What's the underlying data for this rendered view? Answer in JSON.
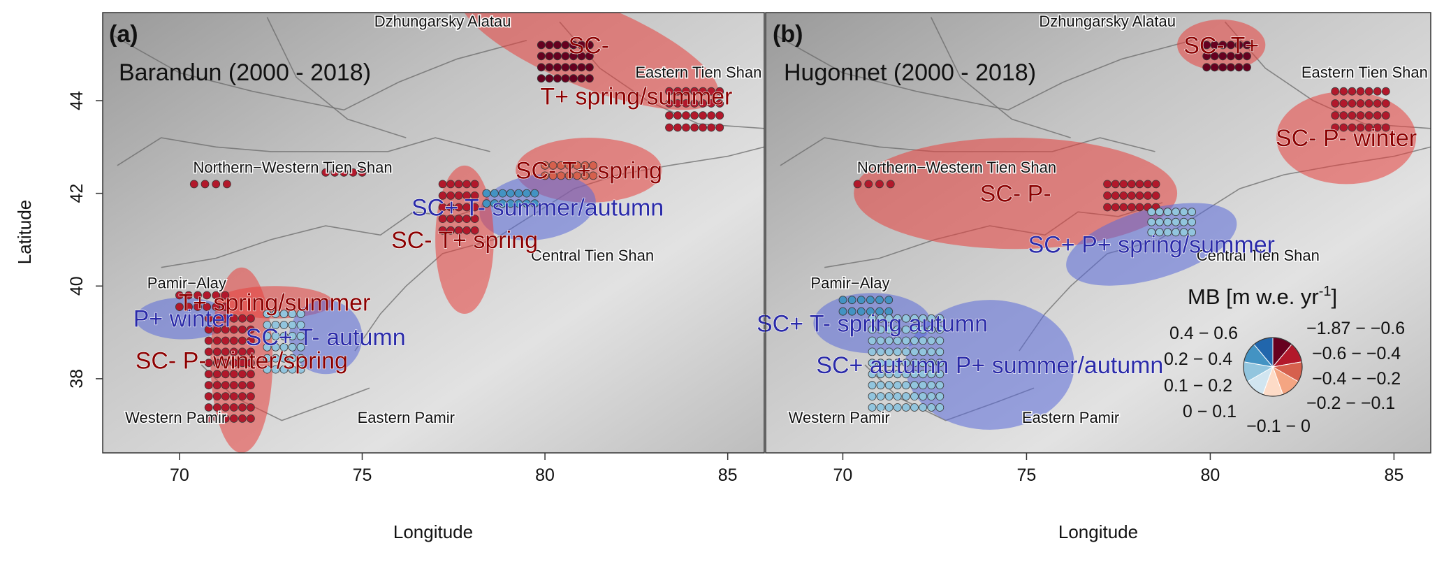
{
  "axes": {
    "ylabel": "Latitude",
    "xlabel": "Longitude",
    "xticks": [
      70,
      75,
      80,
      85
    ],
    "yticks": [
      38,
      40,
      42,
      44
    ],
    "xlim": [
      67.9,
      86.0
    ],
    "ylim": [
      36.4,
      45.9
    ]
  },
  "panels": [
    {
      "id": "a",
      "letter": "(a)",
      "subtitle": "Barandun (2000 - 2018)",
      "regions": [
        {
          "label": "Dzhungarsky Alatau",
          "lon": 77.2,
          "lat": 45.6
        },
        {
          "label": "Eastern Tien Shan",
          "lon": 84.2,
          "lat": 44.5
        },
        {
          "label": "Northern−Western Tien Shan",
          "lon": 73.1,
          "lat": 42.45
        },
        {
          "label": "Central Tien Shan",
          "lon": 81.3,
          "lat": 40.55
        },
        {
          "label": "Pamir−Alay",
          "lon": 70.2,
          "lat": 39.95
        },
        {
          "label": "Western Pamir",
          "lon": 69.9,
          "lat": 37.05
        },
        {
          "label": "Eastern Pamir",
          "lon": 76.2,
          "lat": 37.05
        }
      ]
    },
    {
      "id": "b",
      "letter": "(b)",
      "subtitle": "Hugonnet (2000 - 2018)",
      "regions": [
        {
          "label": "Dzhungarsky Alatau",
          "lon": 77.2,
          "lat": 45.6
        },
        {
          "label": "Eastern Tien Shan",
          "lon": 84.2,
          "lat": 44.5
        },
        {
          "label": "Northern−Western Tien Shan",
          "lon": 73.1,
          "lat": 42.45
        },
        {
          "label": "Central Tien Shan",
          "lon": 81.3,
          "lat": 40.55
        },
        {
          "label": "Pamir−Alay",
          "lon": 70.2,
          "lat": 39.95
        },
        {
          "label": "Western Pamir",
          "lon": 69.9,
          "lat": 37.05
        },
        {
          "label": "Eastern Pamir",
          "lon": 76.2,
          "lat": 37.05
        }
      ]
    }
  ],
  "legend": {
    "title": "MB [m w.e. yr",
    "title_sup": "-1",
    "title_end": "]",
    "classes_negative": [
      {
        "label": "−1.87 − −0.6",
        "color": "#67001f"
      },
      {
        "label": "−0.6 − −0.4",
        "color": "#b2182b"
      },
      {
        "label": "−0.4 − −0.2",
        "color": "#d6604d"
      },
      {
        "label": "−0.2 − −0.1",
        "color": "#f4a582"
      },
      {
        "label": "−0.1 − 0",
        "color": "#fddbc7"
      }
    ],
    "classes_positive": [
      {
        "label": "0.4 − 0.6",
        "color": "#2166ac"
      },
      {
        "label": "0.2 − 0.4",
        "color": "#4393c3"
      },
      {
        "label": "0.1 − 0.2",
        "color": "#92c5de"
      },
      {
        "label": "0 − 0.1",
        "color": "#d1e5f0"
      }
    ]
  },
  "chart_data": [
    {
      "type": "scatter",
      "title": "Barandun (2000 - 2018)",
      "xlabel": "Longitude",
      "ylabel": "Latitude",
      "xlim": [
        67.9,
        86.0
      ],
      "ylim": [
        36.4,
        45.9
      ],
      "point_groups": [
        {
          "lon0": 79.9,
          "lat0": 45.2,
          "cols": 7,
          "rows": 4,
          "dlon": 0.22,
          "dlat": 0.24,
          "mb_class": "-1.87 - -0.6"
        },
        {
          "lon0": 83.4,
          "lat0": 44.2,
          "cols": 7,
          "rows": 4,
          "dlon": 0.23,
          "dlat": 0.26,
          "mb_class": "-0.6 - -0.4"
        },
        {
          "lon0": 70.4,
          "lat0": 42.2,
          "cols": 4,
          "rows": 1,
          "dlon": 0.3,
          "dlat": 0.25,
          "mb_class": "-0.6 - -0.4"
        },
        {
          "lon0": 74.0,
          "lat0": 42.45,
          "cols": 5,
          "rows": 1,
          "dlon": 0.25,
          "dlat": 0.25,
          "mb_class": "-0.6 - -0.4"
        },
        {
          "lon0": 77.2,
          "lat0": 42.2,
          "cols": 5,
          "rows": 5,
          "dlon": 0.22,
          "dlat": 0.25,
          "mb_class": "-0.6 - -0.4"
        },
        {
          "lon0": 78.4,
          "lat0": 42.0,
          "cols": 7,
          "rows": 2,
          "dlon": 0.22,
          "dlat": 0.22,
          "mb_class": "0.2 - 0.4"
        },
        {
          "lon0": 80.0,
          "lat0": 42.6,
          "cols": 7,
          "rows": 2,
          "dlon": 0.22,
          "dlat": 0.22,
          "mb_class": "-0.4 - -0.2"
        },
        {
          "lon0": 70.0,
          "lat0": 39.8,
          "cols": 6,
          "rows": 2,
          "dlon": 0.25,
          "dlat": 0.25,
          "mb_class": "-0.6 - -0.4"
        },
        {
          "lon0": 70.8,
          "lat0": 39.3,
          "cols": 6,
          "rows": 10,
          "dlon": 0.23,
          "dlat": 0.24,
          "mb_class": "-0.6 - -0.4"
        },
        {
          "lon0": 72.4,
          "lat0": 39.4,
          "cols": 5,
          "rows": 6,
          "dlon": 0.23,
          "dlat": 0.24,
          "mb_class": "0.1 - 0.2"
        }
      ],
      "annotations": [
        {
          "text": "SC-",
          "color": "#8b0000",
          "lon": 81.2,
          "lat": 45.2,
          "ellipse": {
            "rx": 3.8,
            "ry": 0.9,
            "rot": 22,
            "fill": "#e8403c"
          }
        },
        {
          "text": "T+ spring/summer",
          "color": "#8b0000",
          "lon": 82.5,
          "lat": 44.1
        },
        {
          "text": "SC- T+ spring",
          "color": "#8b0000",
          "lon": 81.2,
          "lat": 42.5,
          "ellipse": {
            "rx": 2.0,
            "ry": 0.7,
            "rot": 0,
            "fill": "#e8403c"
          }
        },
        {
          "text": "SC+ T- summer/autumn",
          "color": "#2a2aa8",
          "lon": 79.8,
          "lat": 41.7,
          "ellipse": {
            "rx": 1.6,
            "ry": 0.7,
            "rot": -8,
            "fill": "#5a6ad8"
          }
        },
        {
          "text": "SC- T+ spring",
          "color": "#8b0000",
          "lon": 77.8,
          "lat": 41.0,
          "ellipse": {
            "rx": 0.8,
            "ry": 1.6,
            "rot": 0,
            "fill": "#e8403c"
          }
        },
        {
          "text": "T+ spring/summer",
          "color": "#8b0000",
          "lon": 72.6,
          "lat": 39.65,
          "ellipse": {
            "rx": 1.6,
            "ry": 0.35,
            "rot": 0,
            "fill": "#e8403c"
          }
        },
        {
          "text": "P+ winter",
          "color": "#2a2aa8",
          "lon": 70.1,
          "lat": 39.3,
          "ellipse": {
            "rx": 1.3,
            "ry": 0.45,
            "rot": 0,
            "fill": "#5a6ad8"
          }
        },
        {
          "text": "SC- P- winter/spring",
          "color": "#8b0000",
          "lon": 71.7,
          "lat": 38.4,
          "ellipse": {
            "rx": 0.85,
            "ry": 2.0,
            "rot": 0,
            "fill": "#e8403c"
          }
        },
        {
          "text": "SC+ T- autumn",
          "color": "#2a2aa8",
          "lon": 74.0,
          "lat": 38.9,
          "ellipse": {
            "rx": 1.0,
            "ry": 0.8,
            "rot": 0,
            "fill": "#5a6ad8"
          }
        }
      ]
    },
    {
      "type": "scatter",
      "title": "Hugonnet (2000 - 2018)",
      "xlabel": "Longitude",
      "ylabel": "Latitude",
      "xlim": [
        67.9,
        86.0
      ],
      "ylim": [
        36.4,
        45.9
      ],
      "point_groups": [
        {
          "lon0": 79.9,
          "lat0": 45.2,
          "cols": 6,
          "rows": 3,
          "dlon": 0.22,
          "dlat": 0.24,
          "mb_class": "-1.87 - -0.6"
        },
        {
          "lon0": 83.4,
          "lat0": 44.2,
          "cols": 7,
          "rows": 4,
          "dlon": 0.23,
          "dlat": 0.26,
          "mb_class": "-0.6 - -0.4"
        },
        {
          "lon0": 70.4,
          "lat0": 42.2,
          "cols": 4,
          "rows": 1,
          "dlon": 0.3,
          "dlat": 0.25,
          "mb_class": "-0.6 - -0.4"
        },
        {
          "lon0": 77.2,
          "lat0": 42.2,
          "cols": 7,
          "rows": 3,
          "dlon": 0.22,
          "dlat": 0.25,
          "mb_class": "-0.6 - -0.4"
        },
        {
          "lon0": 78.4,
          "lat0": 41.6,
          "cols": 6,
          "rows": 3,
          "dlon": 0.22,
          "dlat": 0.22,
          "mb_class": "0.1 - 0.2"
        },
        {
          "lon0": 70.0,
          "lat0": 39.7,
          "cols": 6,
          "rows": 2,
          "dlon": 0.25,
          "dlat": 0.25,
          "mb_class": "0.2 - 0.4"
        },
        {
          "lon0": 70.8,
          "lat0": 39.3,
          "cols": 9,
          "rows": 9,
          "dlon": 0.23,
          "dlat": 0.24,
          "mb_class": "0.1 - 0.2"
        }
      ],
      "annotations": [
        {
          "text": "SC- T+",
          "color": "#8b0000",
          "lon": 80.3,
          "lat": 45.2,
          "ellipse": {
            "rx": 1.2,
            "ry": 0.55,
            "rot": 0,
            "fill": "#e8403c"
          }
        },
        {
          "text": "SC- P- winter",
          "color": "#8b0000",
          "lon": 83.7,
          "lat": 43.2,
          "ellipse": {
            "rx": 1.9,
            "ry": 1.0,
            "rot": 0,
            "fill": "#e8403c"
          }
        },
        {
          "text": "SC- P-",
          "color": "#8b0000",
          "lon": 74.7,
          "lat": 42.0,
          "ellipse": {
            "rx": 4.4,
            "ry": 1.2,
            "rot": 0,
            "fill": "#e8403c"
          }
        },
        {
          "text": "SC+ P+ spring/summer",
          "color": "#2a2aa8",
          "lon": 78.4,
          "lat": 40.9,
          "ellipse": {
            "rx": 2.4,
            "ry": 0.75,
            "rot": -16,
            "fill": "#5a6ad8"
          }
        },
        {
          "text": "SC+ T- spring autumn",
          "color": "#2a2aa8",
          "lon": 70.8,
          "lat": 39.2,
          "ellipse": {
            "rx": 1.6,
            "ry": 0.65,
            "rot": 0,
            "fill": "#5a6ad8"
          }
        },
        {
          "text": "SC+ autumn P+ summer/autumn",
          "color": "#2a2aa8",
          "lon": 74.0,
          "lat": 38.3,
          "ellipse": {
            "rx": 2.3,
            "ry": 1.4,
            "rot": 0,
            "fill": "#5a6ad8"
          }
        }
      ]
    }
  ]
}
